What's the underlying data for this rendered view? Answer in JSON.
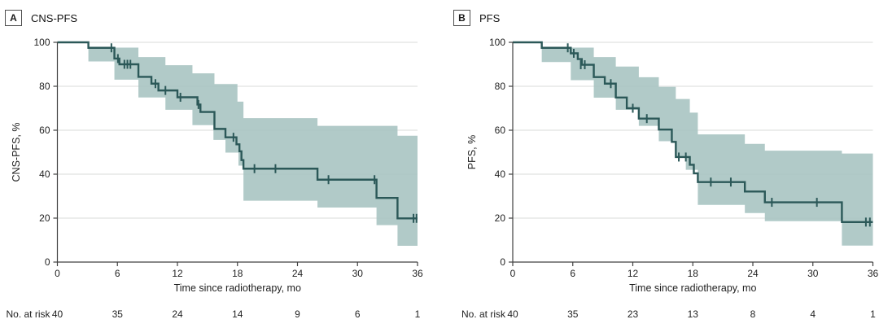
{
  "figure": {
    "background": "#ffffff",
    "style": {
      "line_color": "#2b5858",
      "band_color": "#a9c4c2",
      "grid_color": "#d8dbda",
      "axis_color": "#414141",
      "text_color": "#1f1f1f"
    }
  },
  "chart_data": [
    {
      "type": "line",
      "subtype": "kaplan_meier_step",
      "panel_letter": "A",
      "title": "CNS-PFS",
      "xlabel": "Time since radiotherapy, mo",
      "ylabel": "CNS-PFS, %",
      "xlim": [
        0,
        36
      ],
      "ylim": [
        0,
        100
      ],
      "xticks": [
        0,
        6,
        12,
        18,
        24,
        30,
        36
      ],
      "yticks": [
        0,
        20,
        40,
        60,
        80,
        100
      ],
      "grid": "horizontal",
      "legend": "none",
      "series": [
        {
          "name": "CNS-PFS Kaplan-Meier estimate",
          "step_points": [
            [
              0,
              100
            ],
            [
              3.1,
              97.5
            ],
            [
              5.7,
              92.6
            ],
            [
              6.2,
              90.0
            ],
            [
              8.1,
              84.3
            ],
            [
              9.4,
              81.2
            ],
            [
              10.1,
              78.1
            ],
            [
              12.0,
              75.0
            ],
            [
              14.0,
              71.7
            ],
            [
              14.3,
              68.3
            ],
            [
              15.7,
              60.6
            ],
            [
              16.8,
              56.8
            ],
            [
              17.9,
              53.6
            ],
            [
              18.2,
              50.4
            ],
            [
              18.4,
              46.4
            ],
            [
              18.6,
              42.5
            ],
            [
              26.0,
              37.5
            ],
            [
              31.9,
              29.2
            ],
            [
              34.0,
              19.9
            ]
          ]
        }
      ],
      "censor_marks": [
        [
          5.4,
          97.5
        ],
        [
          6.05,
          92.6
        ],
        [
          6.7,
          90.0
        ],
        [
          7.0,
          90.0
        ],
        [
          7.3,
          90.0
        ],
        [
          9.8,
          81.2
        ],
        [
          10.8,
          78.1
        ],
        [
          12.3,
          75.0
        ],
        [
          14.1,
          71.7
        ],
        [
          17.6,
          56.8
        ],
        [
          19.7,
          42.5
        ],
        [
          21.8,
          42.5
        ],
        [
          27.1,
          37.5
        ],
        [
          31.7,
          37.5
        ],
        [
          35.6,
          19.9
        ],
        [
          35.9,
          19.9
        ]
      ],
      "ci_band": {
        "upper": [
          [
            3.1,
            97.6
          ],
          [
            8.1,
            93.3
          ],
          [
            10.8,
            89.6
          ],
          [
            13.5,
            85.9
          ],
          [
            15.7,
            81.0
          ],
          [
            18.0,
            73.0
          ],
          [
            18.6,
            65.5
          ],
          [
            26.0,
            62.0
          ],
          [
            34.0,
            57.5
          ]
        ],
        "lower": [
          [
            3.1,
            91.3
          ],
          [
            5.7,
            83.0
          ],
          [
            8.1,
            74.9
          ],
          [
            10.8,
            69.3
          ],
          [
            13.5,
            62.3
          ],
          [
            15.6,
            55.6
          ],
          [
            16.8,
            49.8
          ],
          [
            18.1,
            43.9
          ],
          [
            18.6,
            27.9
          ],
          [
            26.0,
            24.8
          ],
          [
            31.9,
            16.8
          ],
          [
            34.0,
            7.4
          ]
        ]
      },
      "risk_table": {
        "label": "No. at risk",
        "times": [
          0,
          6,
          12,
          18,
          24,
          30,
          36
        ],
        "counts": [
          40,
          35,
          24,
          14,
          9,
          6,
          1
        ]
      }
    },
    {
      "type": "line",
      "subtype": "kaplan_meier_step",
      "panel_letter": "B",
      "title": "PFS",
      "xlabel": "Time since radiotherapy, mo",
      "ylabel": "PFS, %",
      "xlim": [
        0,
        36
      ],
      "ylim": [
        0,
        100
      ],
      "xticks": [
        0,
        6,
        12,
        18,
        24,
        30,
        36
      ],
      "yticks": [
        0,
        20,
        40,
        60,
        80,
        100
      ],
      "grid": "horizontal",
      "legend": "none",
      "series": [
        {
          "name": "PFS Kaplan-Meier estimate",
          "step_points": [
            [
              0,
              100
            ],
            [
              2.9,
              97.5
            ],
            [
              5.8,
              95.0
            ],
            [
              6.5,
              92.4
            ],
            [
              6.9,
              89.8
            ],
            [
              8.1,
              84.2
            ],
            [
              9.2,
              81.2
            ],
            [
              10.3,
              74.9
            ],
            [
              11.4,
              70.0
            ],
            [
              12.6,
              65.3
            ],
            [
              14.6,
              60.3
            ],
            [
              15.9,
              54.7
            ],
            [
              16.3,
              47.8
            ],
            [
              17.7,
              44.3
            ],
            [
              18.1,
              40.4
            ],
            [
              18.5,
              36.4
            ],
            [
              23.2,
              32.1
            ],
            [
              25.2,
              27.2
            ],
            [
              32.9,
              18.2
            ]
          ]
        }
      ],
      "censor_marks": [
        [
          5.5,
          97.5
        ],
        [
          6.1,
          95.0
        ],
        [
          6.8,
          89.8
        ],
        [
          7.2,
          89.8
        ],
        [
          9.8,
          81.2
        ],
        [
          12.0,
          70.0
        ],
        [
          13.4,
          65.3
        ],
        [
          16.6,
          47.8
        ],
        [
          17.3,
          47.8
        ],
        [
          19.8,
          36.4
        ],
        [
          21.8,
          36.4
        ],
        [
          25.9,
          27.2
        ],
        [
          30.4,
          27.2
        ],
        [
          35.3,
          18.2
        ],
        [
          35.7,
          18.2
        ]
      ],
      "ci_band": {
        "upper": [
          [
            2.9,
            97.6
          ],
          [
            8.1,
            93.3
          ],
          [
            10.3,
            89.0
          ],
          [
            12.6,
            84.1
          ],
          [
            14.6,
            79.7
          ],
          [
            16.3,
            74.2
          ],
          [
            17.7,
            68.0
          ],
          [
            18.5,
            58.1
          ],
          [
            23.2,
            53.8
          ],
          [
            25.2,
            50.7
          ],
          [
            32.9,
            49.4
          ]
        ],
        "lower": [
          [
            2.9,
            91.0
          ],
          [
            5.8,
            82.8
          ],
          [
            8.1,
            74.8
          ],
          [
            10.3,
            69.3
          ],
          [
            12.6,
            62.0
          ],
          [
            14.6,
            55.0
          ],
          [
            16.3,
            48.0
          ],
          [
            17.3,
            42.0
          ],
          [
            18.5,
            26.0
          ],
          [
            23.2,
            22.3
          ],
          [
            25.2,
            18.6
          ],
          [
            32.9,
            7.5
          ]
        ]
      },
      "risk_table": {
        "label": "No. at risk",
        "times": [
          0,
          6,
          12,
          18,
          24,
          30,
          36
        ],
        "counts": [
          40,
          35,
          23,
          13,
          8,
          4,
          1
        ]
      }
    }
  ]
}
